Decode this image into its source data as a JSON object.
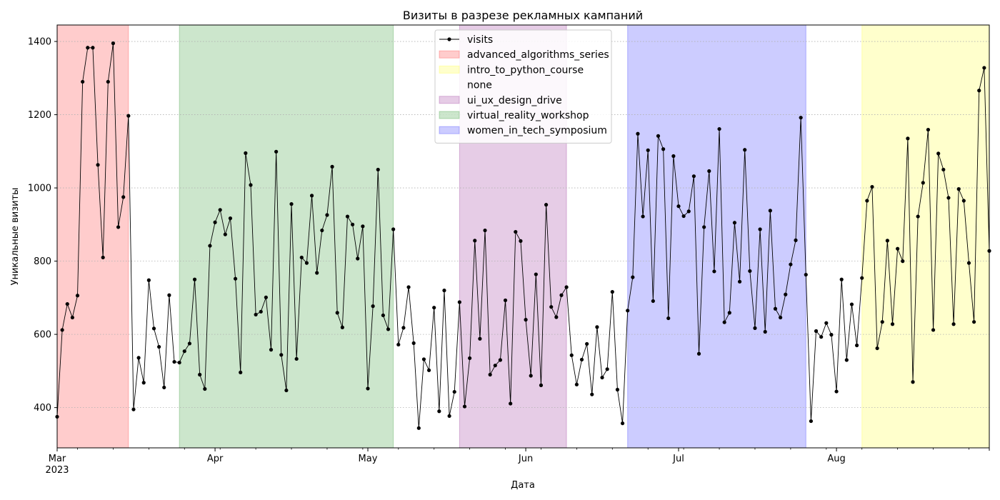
{
  "chart_data": {
    "type": "line",
    "title": "Визиты в разрезе рекламных кампаний",
    "xlabel": "Дата",
    "ylabel": "Уникальные визиты",
    "x_range": [
      "2023-03-01",
      "2023-08-31"
    ],
    "ylim": [
      290,
      1445
    ],
    "y_ticks": [
      400,
      600,
      800,
      1000,
      1200,
      1400
    ],
    "x_ticks": [
      {
        "date": "2023-03-01",
        "label": "Mar",
        "sublabel": "2023"
      },
      {
        "date": "2023-04-01",
        "label": "Apr",
        "sublabel": ""
      },
      {
        "date": "2023-05-01",
        "label": "May",
        "sublabel": ""
      },
      {
        "date": "2023-06-01",
        "label": "Jun",
        "sublabel": ""
      },
      {
        "date": "2023-07-01",
        "label": "Jul",
        "sublabel": ""
      },
      {
        "date": "2023-08-01",
        "label": "Aug",
        "sublabel": ""
      }
    ],
    "grid": "horizontal-dotted",
    "legend_position": "top-center",
    "series": [
      {
        "name": "visits",
        "color": "#000000",
        "x_start": "2023-03-01",
        "x_step_days": 1,
        "values": [
          375,
          612,
          683,
          646,
          706,
          1290,
          1383,
          1383,
          1063,
          810,
          1290,
          1395,
          893,
          975,
          1197,
          395,
          536,
          468,
          748,
          616,
          566,
          455,
          707,
          525,
          523,
          554,
          575,
          750,
          490,
          451,
          842,
          906,
          940,
          873,
          917,
          752,
          496,
          1095,
          1008,
          654,
          662,
          701,
          558,
          1099,
          544,
          447,
          956,
          533,
          810,
          795,
          979,
          768,
          884,
          926,
          1058,
          659,
          619,
          922,
          900,
          807,
          895,
          452,
          677,
          1050,
          652,
          614,
          887,
          572,
          618,
          729,
          576,
          344,
          532,
          502,
          673,
          390,
          720,
          377,
          443,
          688,
          403,
          535,
          856,
          588,
          884,
          490,
          515,
          530,
          693,
          411,
          880,
          855,
          640,
          487,
          764,
          461,
          954,
          675,
          647,
          707,
          729,
          543,
          463,
          531,
          574,
          436,
          620,
          482,
          505,
          716,
          449,
          357,
          665,
          756,
          1148,
          922,
          1103,
          691,
          1142,
          1106,
          644,
          1087,
          950,
          923,
          936,
          1032,
          547,
          893,
          1046,
          772,
          1161,
          633,
          659,
          905,
          744,
          1104,
          773,
          617,
          887,
          607,
          938,
          670,
          646,
          709,
          791,
          857,
          1192,
          763,
          363,
          609,
          593,
          631,
          599,
          444,
          750,
          530,
          682,
          570,
          754,
          965,
          1003,
          562,
          634,
          856,
          628,
          834,
          800,
          1135,
          470,
          922,
          1014,
          1159,
          612,
          1094,
          1050,
          973,
          628,
          997,
          965,
          795,
          634,
          1266,
          1328,
          828
        ]
      }
    ],
    "campaigns": [
      {
        "name": "advanced_algorithms_series",
        "color": "#ff0000",
        "alpha": 0.2,
        "start": "2023-03-01",
        "end": "2023-03-15"
      },
      {
        "name": "intro_to_python_course",
        "color": "#ffff00",
        "alpha": 0.2,
        "start": "2023-08-06",
        "end": "2023-08-31"
      },
      {
        "name": "none",
        "color": "",
        "alpha": 0,
        "start": "",
        "end": ""
      },
      {
        "name": "ui_ux_design_drive",
        "color": "#800080",
        "alpha": 0.2,
        "start": "2023-05-19",
        "end": "2023-06-09"
      },
      {
        "name": "virtual_reality_workshop",
        "color": "#008000",
        "alpha": 0.2,
        "start": "2023-03-25",
        "end": "2023-05-06"
      },
      {
        "name": "women_in_tech_symposium",
        "color": "#0000ff",
        "alpha": 0.2,
        "start": "2023-06-21",
        "end": "2023-07-26"
      }
    ]
  }
}
